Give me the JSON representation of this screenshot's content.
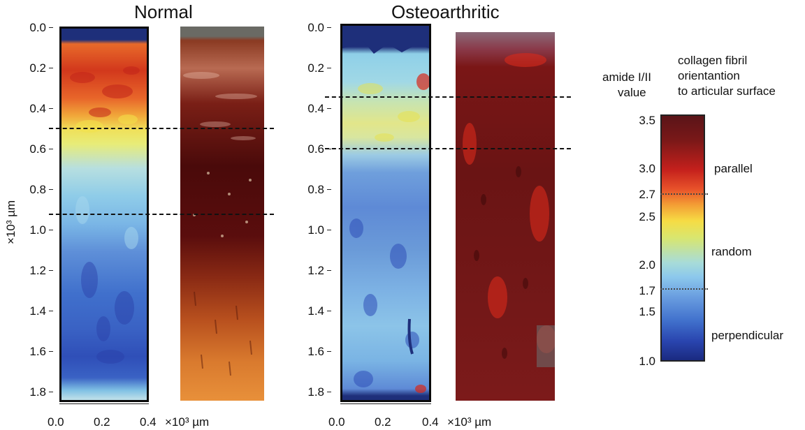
{
  "panels": {
    "normal": {
      "title": "Normal"
    },
    "oa": {
      "title": "Osteoarthritic"
    }
  },
  "y_axis": {
    "label": "×10³ µm",
    "ticks": [
      "0.0",
      "0.2",
      "0.4",
      "0.6",
      "0.8",
      "1.0",
      "1.2",
      "1.4",
      "1.6",
      "1.8"
    ]
  },
  "x_axis": {
    "ticks": [
      "0.0",
      "0.2",
      "0.4"
    ],
    "unit": "×10³ µm"
  },
  "legend": {
    "value_title": [
      "amide I/II",
      "value"
    ],
    "orientation_title": [
      "collagen fibril",
      "orientantion",
      "to articular surface"
    ],
    "ticks": [
      "3.5",
      "3.0",
      "2.7",
      "2.5",
      "2.0",
      "1.7",
      "1.5",
      "1.0"
    ],
    "zones": [
      "parallel",
      "random",
      "perpendicular"
    ]
  },
  "colors": {
    "blue_dark": "#1a2a8a",
    "blue": "#3d6fd0",
    "cyan": "#8fd0ea",
    "yellow": "#f4e84a",
    "orange": "#ef7a2a",
    "red": "#c8201a",
    "darkred": "#5a0f10"
  }
}
